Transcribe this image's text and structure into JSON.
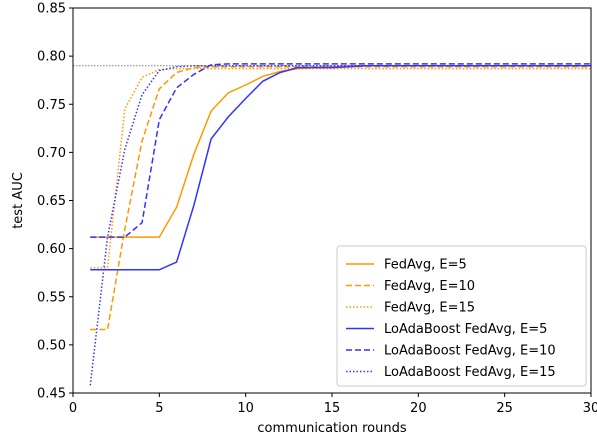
{
  "chart_data": {
    "type": "line",
    "title": "",
    "xlabel": "communication rounds",
    "ylabel": "test AUC",
    "xlim": [
      0,
      30
    ],
    "ylim": [
      0.45,
      0.85
    ],
    "x_ticks": [
      "0",
      "5",
      "10",
      "15",
      "20",
      "25",
      "30"
    ],
    "y_ticks": [
      "0.45",
      "0.50",
      "0.55",
      "0.60",
      "0.65",
      "0.70",
      "0.75",
      "0.80",
      "0.85"
    ],
    "grid": false,
    "legend_position": "bottom-right",
    "reference_line": {
      "y": 0.79,
      "style": "dotted",
      "color": "#808080"
    },
    "series": [
      {
        "name": "FedAvg, E=5",
        "color": "#ff9900",
        "dash": "solid",
        "x": [
          1,
          2,
          3,
          4,
          5,
          6,
          7,
          8,
          9,
          10,
          11,
          12,
          13,
          14,
          15,
          16,
          17,
          18,
          19,
          20,
          21,
          22,
          23,
          24,
          25,
          26,
          27,
          28,
          29,
          30
        ],
        "y": [
          0.612,
          0.612,
          0.612,
          0.612,
          0.612,
          0.643,
          0.698,
          0.743,
          0.762,
          0.77,
          0.779,
          0.784,
          0.787,
          0.788,
          0.789,
          0.79,
          0.79,
          0.79,
          0.79,
          0.79,
          0.79,
          0.79,
          0.79,
          0.79,
          0.79,
          0.79,
          0.79,
          0.79,
          0.79,
          0.79
        ]
      },
      {
        "name": "FedAvg, E=10",
        "color": "#ff9900",
        "dash": "dashed",
        "x": [
          1,
          2,
          3,
          4,
          5,
          6,
          7,
          8,
          9,
          10,
          11,
          12,
          13,
          14,
          15,
          16,
          17,
          18,
          19,
          20,
          21,
          22,
          23,
          24,
          25,
          26,
          27,
          28,
          29,
          30
        ],
        "y": [
          0.516,
          0.516,
          0.62,
          0.712,
          0.766,
          0.783,
          0.788,
          0.789,
          0.789,
          0.789,
          0.789,
          0.789,
          0.789,
          0.789,
          0.789,
          0.789,
          0.789,
          0.789,
          0.789,
          0.789,
          0.789,
          0.789,
          0.789,
          0.789,
          0.789,
          0.789,
          0.789,
          0.789,
          0.789,
          0.789
        ]
      },
      {
        "name": "FedAvg, E=15",
        "color": "#ff9900",
        "dash": "dotted",
        "x": [
          1,
          2,
          3,
          4,
          5,
          6,
          7,
          8,
          9,
          10,
          11,
          12,
          13,
          14,
          15,
          16,
          17,
          18,
          19,
          20,
          21,
          22,
          23,
          24,
          25,
          26,
          27,
          28,
          29,
          30
        ],
        "y": [
          0.58,
          0.58,
          0.745,
          0.778,
          0.786,
          0.787,
          0.787,
          0.787,
          0.787,
          0.787,
          0.787,
          0.787,
          0.787,
          0.787,
          0.787,
          0.787,
          0.787,
          0.787,
          0.787,
          0.787,
          0.787,
          0.787,
          0.787,
          0.787,
          0.787,
          0.787,
          0.787,
          0.787,
          0.787,
          0.787
        ]
      },
      {
        "name": "LoAdaBoost FedAvg, E=5",
        "color": "#3333ff",
        "dash": "solid",
        "x": [
          1,
          2,
          3,
          4,
          5,
          6,
          7,
          8,
          9,
          10,
          11,
          12,
          13,
          14,
          15,
          16,
          17,
          18,
          19,
          20,
          21,
          22,
          23,
          24,
          25,
          26,
          27,
          28,
          29,
          30
        ],
        "y": [
          0.578,
          0.578,
          0.578,
          0.578,
          0.578,
          0.586,
          0.645,
          0.714,
          0.737,
          0.756,
          0.774,
          0.783,
          0.788,
          0.788,
          0.788,
          0.789,
          0.79,
          0.79,
          0.79,
          0.79,
          0.79,
          0.79,
          0.79,
          0.79,
          0.79,
          0.79,
          0.79,
          0.79,
          0.79,
          0.79
        ]
      },
      {
        "name": "LoAdaBoost FedAvg, E=10",
        "color": "#3333ff",
        "dash": "dashed",
        "x": [
          1,
          2,
          3,
          4,
          5,
          6,
          7,
          8,
          9,
          10,
          11,
          12,
          13,
          14,
          15,
          16,
          17,
          18,
          19,
          20,
          21,
          22,
          23,
          24,
          25,
          26,
          27,
          28,
          29,
          30
        ],
        "y": [
          0.612,
          0.612,
          0.612,
          0.627,
          0.734,
          0.767,
          0.781,
          0.791,
          0.792,
          0.792,
          0.792,
          0.792,
          0.792,
          0.792,
          0.792,
          0.792,
          0.792,
          0.792,
          0.792,
          0.792,
          0.792,
          0.792,
          0.792,
          0.792,
          0.792,
          0.792,
          0.792,
          0.792,
          0.792,
          0.792
        ]
      },
      {
        "name": "LoAdaBoost FedAvg, E=15",
        "color": "#3333ff",
        "dash": "dotted",
        "x": [
          1,
          2,
          3,
          4,
          5,
          6,
          7,
          8,
          9,
          10,
          11,
          12,
          13,
          14,
          15,
          16,
          17,
          18,
          19,
          20,
          21,
          22,
          23,
          24,
          25,
          26,
          27,
          28,
          29,
          30
        ],
        "y": [
          0.458,
          0.612,
          0.703,
          0.76,
          0.785,
          0.789,
          0.79,
          0.79,
          0.79,
          0.79,
          0.79,
          0.79,
          0.79,
          0.79,
          0.79,
          0.79,
          0.79,
          0.79,
          0.79,
          0.79,
          0.79,
          0.79,
          0.79,
          0.79,
          0.79,
          0.79,
          0.79,
          0.79,
          0.79,
          0.79
        ]
      }
    ]
  }
}
